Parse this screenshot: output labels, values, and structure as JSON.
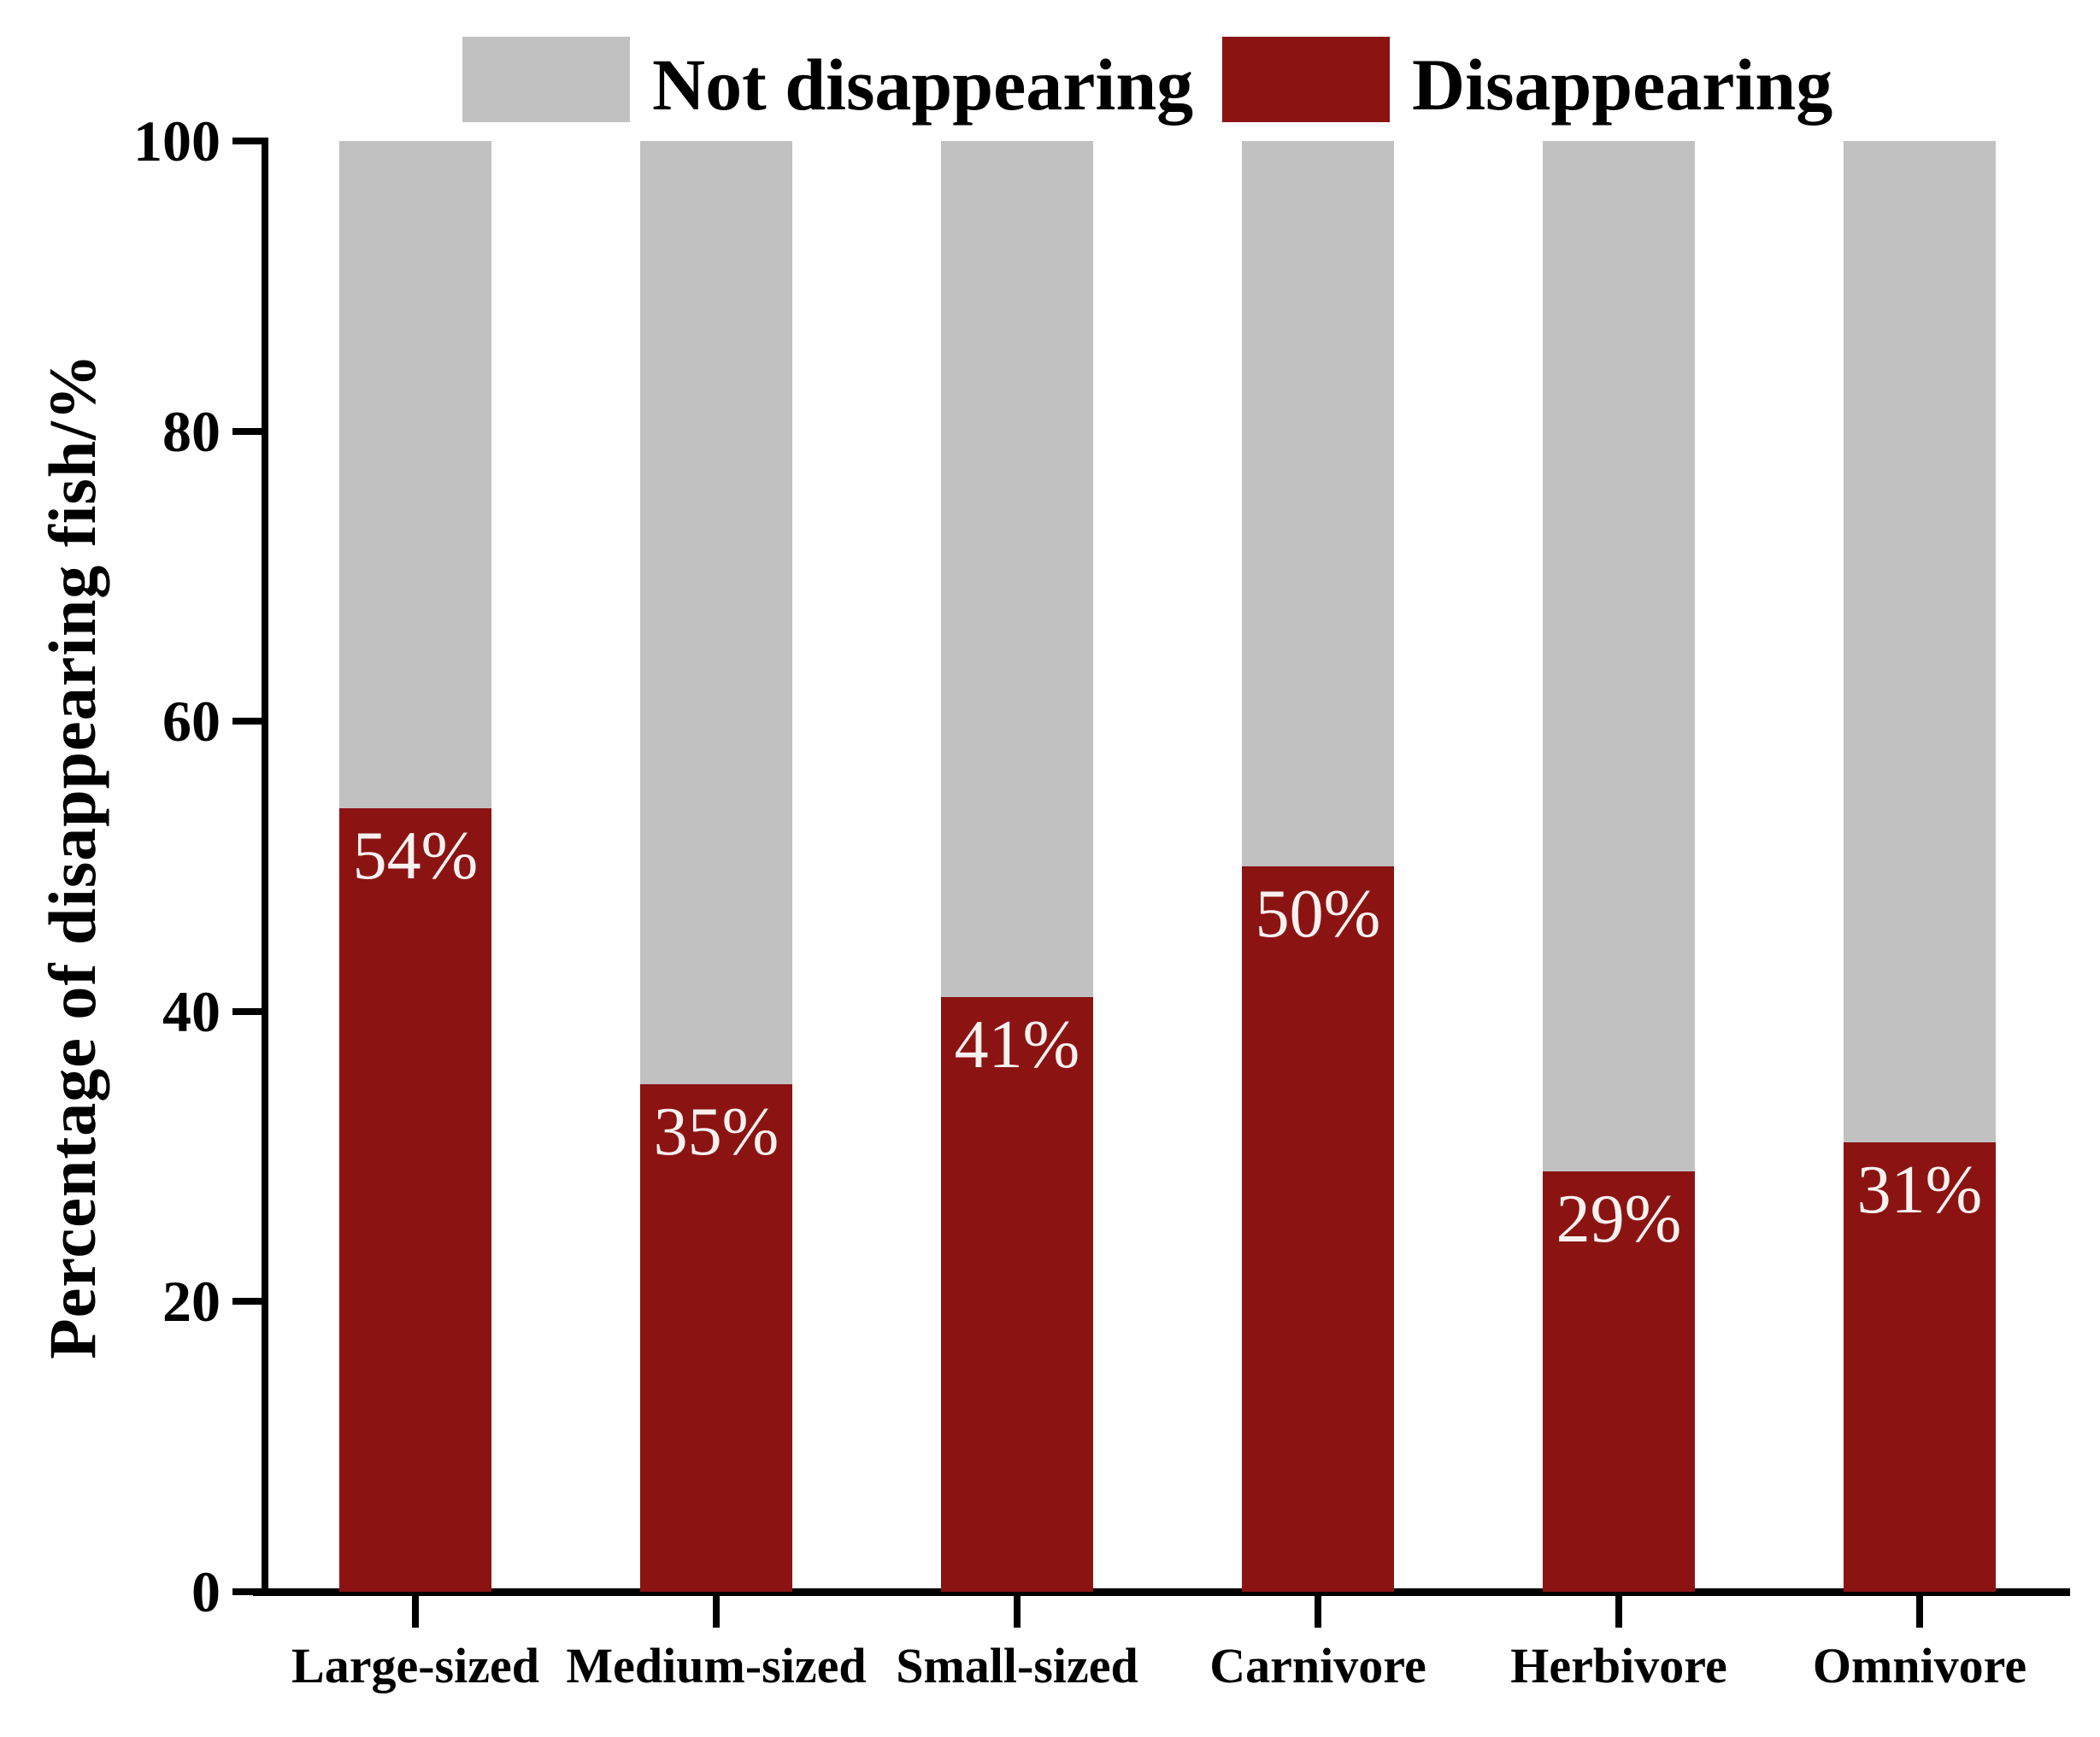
{
  "chart_data": {
    "type": "bar",
    "stacked": true,
    "orientation": "vertical",
    "categories": [
      "Large-sized",
      "Medium-sized",
      "Small-sized",
      "Carnivore",
      "Herbivore",
      "Omnivore"
    ],
    "series": [
      {
        "name": "Disappearing",
        "color": "#8B1413",
        "values": [
          54,
          35,
          41,
          50,
          29,
          31
        ],
        "value_labels": [
          "54%",
          "35%",
          "41%",
          "50%",
          "29%",
          "31%"
        ],
        "value_label_color": "#F7F2F0"
      },
      {
        "name": "Not disappearing",
        "color": "#C1C1C1",
        "values": [
          46,
          65,
          59,
          50,
          71,
          69
        ]
      }
    ],
    "ylabel": "Percentage of disappearing fish/%",
    "xlabel": "",
    "ylim": [
      0,
      100
    ],
    "yticks": [
      0,
      20,
      40,
      60,
      80,
      100
    ],
    "ytick_labels": [
      "0",
      "20",
      "40",
      "60",
      "80",
      "100"
    ],
    "grid": false,
    "legend": {
      "position": "top",
      "items": [
        {
          "label": "Not disappearing",
          "color": "#C1C1C1"
        },
        {
          "label": "Disappearing",
          "color": "#8B1413"
        }
      ]
    },
    "axis_color": "#000000",
    "background_color": "#FFFFFF"
  }
}
